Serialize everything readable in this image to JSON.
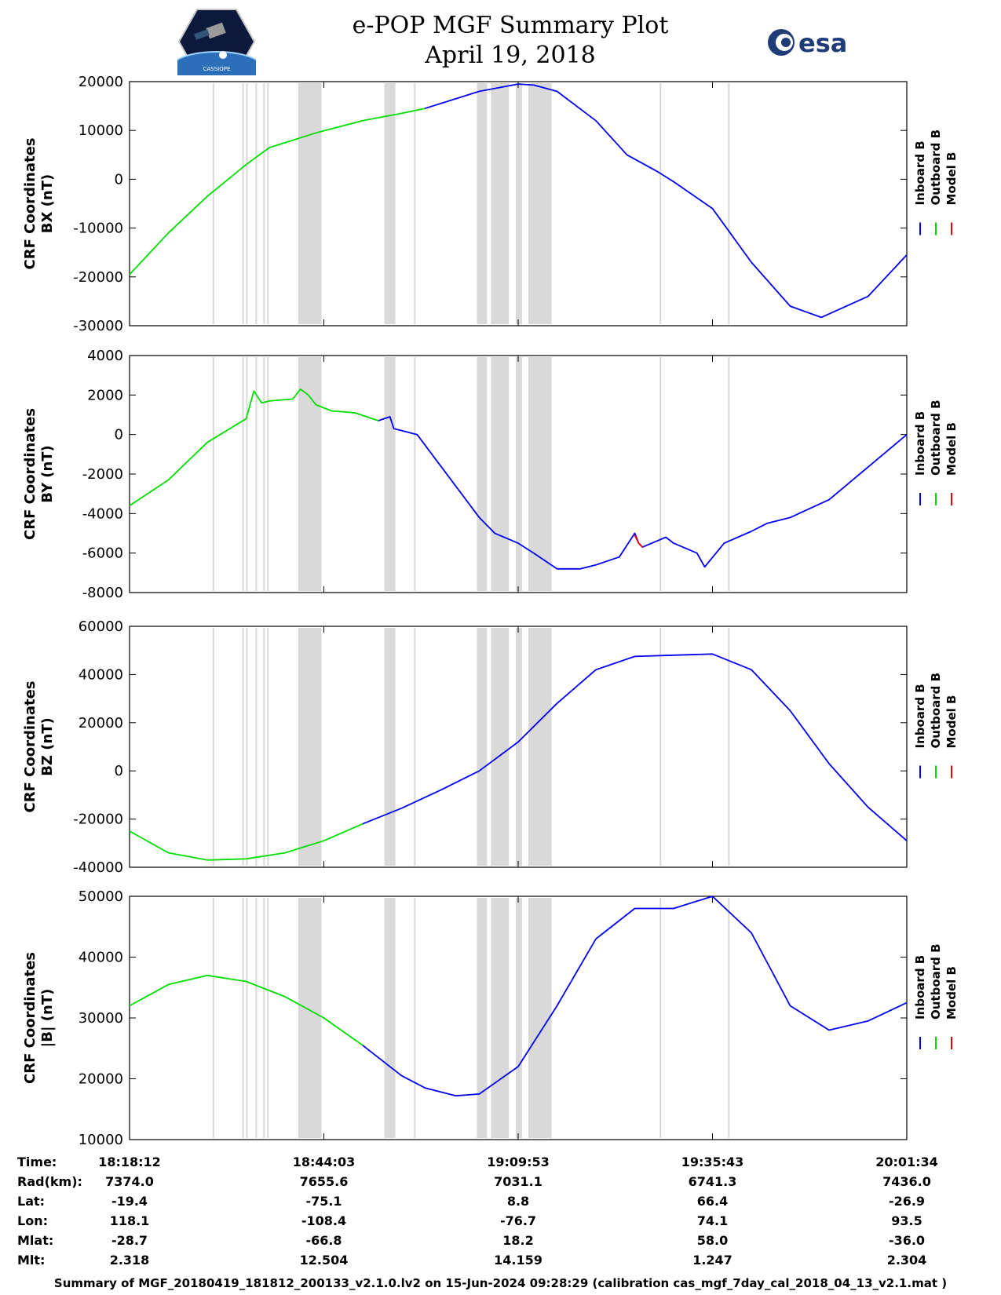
{
  "header": {
    "title_line1": "e-POP MGF Summary Plot",
    "title_line2": "April 19, 2018",
    "logo_left_text": "CASSIOPE",
    "logo_right_text": "esa"
  },
  "legend": {
    "labels": [
      "Inboard B",
      "Outboard B",
      "Model B"
    ],
    "colors": [
      "#0000ee",
      "#00dd00",
      "#ee0000"
    ]
  },
  "gap_color": "#d9d9d9",
  "chart_data": [
    {
      "type": "line",
      "ylabel_line1": "CRF Coordinates",
      "ylabel_line2": "BX (nT)",
      "ylim": [
        -30000,
        20000
      ],
      "yticks": [
        20000,
        10000,
        0,
        -10000,
        -20000,
        -30000
      ],
      "ytick_labels": [
        "20000",
        "10000",
        "0",
        "-10000",
        "-20000",
        "-30000"
      ],
      "series": [
        {
          "name": "Outboard B",
          "x": [
            0,
            0.05,
            0.1,
            0.15,
            0.18,
            0.24,
            0.3,
            0.35,
            0.38
          ],
          "values": [
            -19500,
            -11000,
            -3500,
            3000,
            6500,
            9500,
            12000,
            13500,
            14500
          ]
        },
        {
          "name": "Inboard B",
          "x": [
            0.38,
            0.45,
            0.5,
            0.52,
            0.55,
            0.6,
            0.64,
            0.68,
            0.7,
            0.75,
            0.8,
            0.85,
            0.89,
            0.95,
            1.0
          ],
          "values": [
            14500,
            18000,
            19500,
            19300,
            18000,
            12000,
            5000,
            1500,
            -500,
            -6000,
            -17000,
            -26000,
            -28300,
            -24000,
            -15500
          ]
        }
      ]
    },
    {
      "type": "line",
      "ylabel_line1": "CRF Coordinates",
      "ylabel_line2": "BY (nT)",
      "ylim": [
        -8000,
        4000
      ],
      "yticks": [
        4000,
        2000,
        0,
        -2000,
        -4000,
        -6000,
        -8000
      ],
      "ytick_labels": [
        "4000",
        "2000",
        "0",
        "-2000",
        "-4000",
        "-6000",
        "-8000"
      ],
      "series": [
        {
          "name": "Outboard B",
          "x": [
            0,
            0.05,
            0.1,
            0.15,
            0.16,
            0.17,
            0.18,
            0.21,
            0.22,
            0.23,
            0.24,
            0.26,
            0.29,
            0.32
          ],
          "values": [
            -3600,
            -2300,
            -400,
            800,
            2200,
            1600,
            1700,
            1800,
            2300,
            2000,
            1500,
            1200,
            1100,
            700
          ]
        },
        {
          "name": "Inboard B",
          "x": [
            0.32,
            0.335,
            0.34,
            0.37,
            0.45,
            0.47,
            0.5,
            0.52,
            0.55,
            0.58,
            0.6,
            0.63,
            0.65,
            0.655,
            0.66,
            0.69,
            0.7,
            0.73,
            0.74,
            0.765,
            0.8,
            0.82,
            0.85,
            0.9,
            1.0
          ],
          "values": [
            700,
            900,
            300,
            0,
            -4200,
            -5000,
            -5500,
            -6000,
            -6800,
            -6800,
            -6600,
            -6200,
            -5000,
            -5500,
            -5700,
            -5200,
            -5500,
            -6000,
            -6700,
            -5500,
            -4900,
            -4500,
            -4200,
            -3300,
            0
          ]
        },
        {
          "name": "Model B",
          "x": [
            0.65,
            0.655,
            0.66
          ],
          "values": [
            -5100,
            -5500,
            -5700
          ]
        }
      ]
    },
    {
      "type": "line",
      "ylabel_line1": "CRF Coordinates",
      "ylabel_line2": "BZ (nT)",
      "ylim": [
        -40000,
        60000
      ],
      "yticks": [
        60000,
        40000,
        20000,
        0,
        -20000,
        -40000
      ],
      "ytick_labels": [
        "60000",
        "40000",
        "20000",
        "0",
        "-20000",
        "-40000"
      ],
      "series": [
        {
          "name": "Outboard B",
          "x": [
            0,
            0.05,
            0.1,
            0.15,
            0.2,
            0.25,
            0.3
          ],
          "values": [
            -25000,
            -34000,
            -37000,
            -36500,
            -34000,
            -29000,
            -22000
          ]
        },
        {
          "name": "Inboard B",
          "x": [
            0.3,
            0.35,
            0.4,
            0.45,
            0.5,
            0.55,
            0.6,
            0.65,
            0.7,
            0.75,
            0.8,
            0.85,
            0.9,
            0.95,
            1.0
          ],
          "values": [
            -22000,
            -15500,
            -8000,
            0,
            12000,
            28000,
            42000,
            47500,
            48000,
            48500,
            42000,
            25000,
            3000,
            -15000,
            -29000
          ]
        }
      ]
    },
    {
      "type": "line",
      "ylabel_line1": "CRF Coordinates",
      "ylabel_line2": "|B| (nT)",
      "ylim": [
        10000,
        50000
      ],
      "yticks": [
        50000,
        40000,
        30000,
        20000,
        10000
      ],
      "ytick_labels": [
        "50000",
        "40000",
        "30000",
        "20000",
        "10000"
      ],
      "series": [
        {
          "name": "Outboard B",
          "x": [
            0,
            0.05,
            0.1,
            0.15,
            0.2,
            0.25,
            0.3
          ],
          "values": [
            32000,
            35500,
            37000,
            36000,
            33500,
            30000,
            25500
          ]
        },
        {
          "name": "Inboard B",
          "x": [
            0.3,
            0.35,
            0.38,
            0.42,
            0.45,
            0.5,
            0.55,
            0.6,
            0.65,
            0.7,
            0.75,
            0.8,
            0.85,
            0.9,
            0.95,
            1.0
          ],
          "values": [
            25500,
            20500,
            18500,
            17200,
            17500,
            22000,
            32000,
            43000,
            48000,
            48000,
            50000,
            44000,
            32000,
            28000,
            29500,
            32500
          ]
        }
      ]
    }
  ],
  "gaps": {
    "lines": [
      0.108,
      0.146,
      0.151,
      0.164,
      0.175,
      0.178,
      0.367,
      0.448,
      0.477,
      0.489,
      0.751,
      0.765
    ],
    "bands": [
      [
        0.217,
        0.247
      ],
      [
        0.328,
        0.342
      ],
      [
        0.447,
        0.465
      ],
      [
        0.5,
        0.522
      ],
      [
        0.515,
        0.525
      ],
      [
        0.544,
        0.54
      ],
      [
        0.513,
        0.535
      ]
    ]
  },
  "info_table": {
    "row_labels": [
      "Time:",
      "Rad(km):",
      "Lat:",
      "Lon:",
      "Mlat:",
      "Mlt:"
    ],
    "columns": [
      [
        "18:18:12",
        "7374.0",
        "-19.4",
        "118.1",
        "-28.7",
        "2.318"
      ],
      [
        "18:44:03",
        "7655.6",
        "-75.1",
        "-108.4",
        "-66.8",
        "12.504"
      ],
      [
        "19:09:53",
        "7031.1",
        "8.8",
        "-76.7",
        "18.2",
        "14.159"
      ],
      [
        "19:35:43",
        "6741.3",
        "66.4",
        "74.1",
        "58.0",
        "1.247"
      ],
      [
        "20:01:34",
        "7436.0",
        "-26.9",
        "93.5",
        "-36.0",
        "2.304"
      ]
    ]
  },
  "footer": "Summary of MGF_20180419_181812_200133_v2.1.0.lv2 on 15-Jun-2024 09:28:29 (calibration cas_mgf_7day_cal_2018_04_13_v2.1.mat )"
}
